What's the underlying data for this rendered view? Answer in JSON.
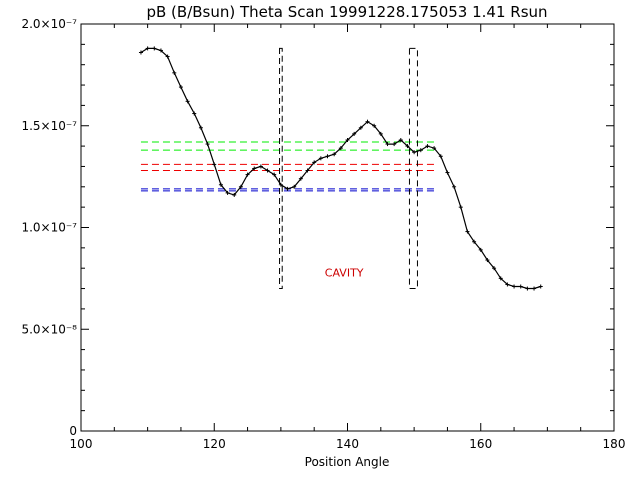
{
  "chart_data": {
    "type": "line",
    "title": "pB (B/Bsun) Theta Scan 19991228.175053 1.41 Rsun",
    "xlabel": "Position Angle",
    "ylabel": "",
    "xlim": [
      100,
      180
    ],
    "ylim": [
      0,
      2e-07
    ],
    "x_ticks": [
      {
        "value": 100,
        "label": "100"
      },
      {
        "value": 120,
        "label": "120"
      },
      {
        "value": 140,
        "label": "140"
      },
      {
        "value": 160,
        "label": "160"
      },
      {
        "value": 180,
        "label": "180"
      }
    ],
    "y_ticks": [
      {
        "value": 0,
        "label": "0"
      },
      {
        "value": 5e-08,
        "label": "5.0×10⁻⁸"
      },
      {
        "value": 1e-07,
        "label": "1.0×10⁻⁷"
      },
      {
        "value": 1.5e-07,
        "label": "1.5×10⁻⁷"
      },
      {
        "value": 2e-07,
        "label": "2.0×10⁻⁷"
      }
    ],
    "grid": false,
    "series": [
      {
        "color": "#000000",
        "x": [
          109,
          110,
          111,
          112,
          113,
          114,
          115,
          116,
          117,
          118,
          119,
          120,
          121,
          122,
          123,
          124,
          125,
          126,
          127,
          128,
          129,
          130,
          131,
          132,
          133,
          134,
          135,
          136,
          137,
          138,
          139,
          140,
          141,
          142,
          143,
          144,
          145,
          146,
          147,
          148,
          149,
          150,
          151,
          152,
          153,
          154,
          155,
          156,
          157,
          158,
          159,
          160,
          161,
          162,
          163,
          164,
          165,
          166,
          167,
          168,
          169
        ],
        "y": [
          1.86e-07,
          1.88e-07,
          1.88e-07,
          1.87e-07,
          1.84e-07,
          1.76e-07,
          1.69e-07,
          1.62e-07,
          1.56e-07,
          1.49e-07,
          1.41e-07,
          1.31e-07,
          1.21e-07,
          1.17e-07,
          1.16e-07,
          1.2e-07,
          1.26e-07,
          1.29e-07,
          1.3e-07,
          1.28e-07,
          1.26e-07,
          1.21e-07,
          1.19e-07,
          1.2e-07,
          1.24e-07,
          1.28e-07,
          1.32e-07,
          1.34e-07,
          1.35e-07,
          1.36e-07,
          1.39e-07,
          1.43e-07,
          1.46e-07,
          1.49e-07,
          1.52e-07,
          1.5e-07,
          1.46e-07,
          1.41e-07,
          1.41e-07,
          1.43e-07,
          1.4e-07,
          1.37e-07,
          1.38e-07,
          1.4e-07,
          1.39e-07,
          1.35e-07,
          1.27e-07,
          1.2e-07,
          1.1e-07,
          9.8e-08,
          9.3e-08,
          8.9e-08,
          8.4e-08,
          8e-08,
          7.5e-08,
          7.2e-08,
          7.1e-08,
          7.1e-08,
          7e-08,
          7e-08,
          7.1e-08
        ]
      }
    ],
    "reference_lines": [
      {
        "color": "#00ee00",
        "y": [
          1.42e-07,
          1.38e-07
        ],
        "x_range": [
          109,
          153
        ]
      },
      {
        "color": "#ee0000",
        "y": [
          1.31e-07,
          1.28e-07
        ],
        "x_range": [
          109,
          153
        ]
      },
      {
        "color": "#0000cc",
        "y": [
          1.19e-07,
          1.18e-07
        ],
        "x_range": [
          109,
          153
        ]
      }
    ],
    "boxes": [
      {
        "x_range": [
          129.8,
          130.2
        ],
        "y_range": [
          7e-08,
          1.88e-07
        ]
      },
      {
        "x_range": [
          149.3,
          150.5
        ],
        "y_range": [
          7e-08,
          1.88e-07
        ]
      }
    ],
    "annotations": [
      {
        "text": "CAVITY",
        "x": 139.5,
        "y": 7.8e-08,
        "color": "#cc0000"
      }
    ]
  }
}
